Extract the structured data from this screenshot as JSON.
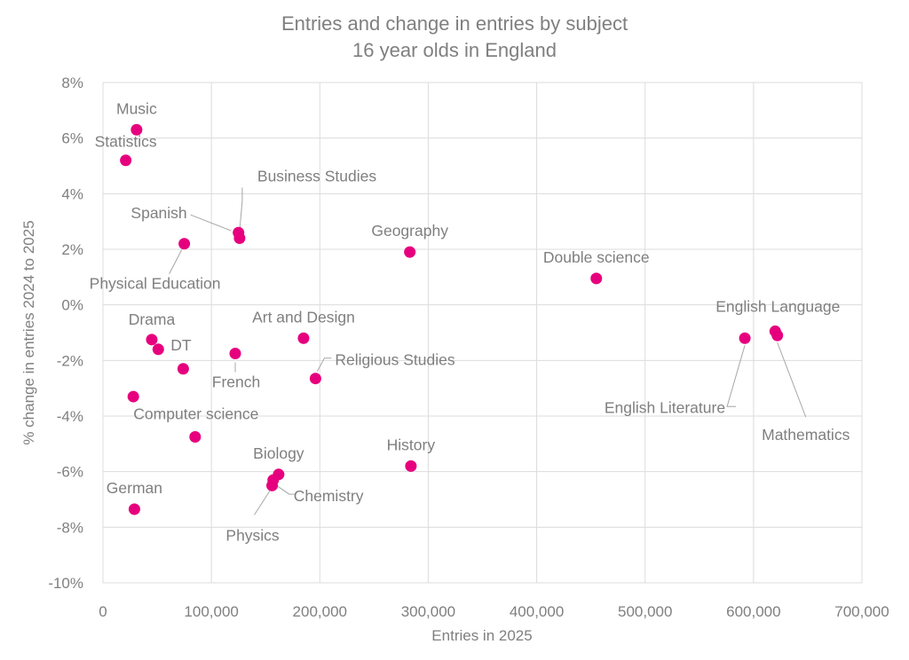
{
  "chart_data": {
    "type": "scatter",
    "title": "Entries and change in entries by subject",
    "subtitle": "16 year olds in England",
    "xlabel": "Entries in 2025",
    "ylabel": "% change in entries 2024 to 2025",
    "xlim": [
      0,
      700000
    ],
    "ylim": [
      -10,
      8
    ],
    "x_ticks": [
      0,
      100000,
      200000,
      300000,
      400000,
      500000,
      600000,
      700000
    ],
    "x_tick_labels": [
      "0",
      "100,000",
      "200,000",
      "300,000",
      "400,000",
      "500,000",
      "600,000",
      "700,000"
    ],
    "y_ticks": [
      -10,
      -8,
      -6,
      -4,
      -2,
      0,
      2,
      4,
      6,
      8
    ],
    "y_tick_labels": [
      "-10%",
      "-8%",
      "-6%",
      "-4%",
      "-2%",
      "0%",
      "2%",
      "4%",
      "6%",
      "8%"
    ],
    "grid": true,
    "marker_color": "#e6007e",
    "points": [
      {
        "label": "Music",
        "x": 31000,
        "y": 6.3
      },
      {
        "label": "Statistics",
        "x": 21000,
        "y": 5.2
      },
      {
        "label": "Business Studies",
        "x": 126000,
        "y": 2.4
      },
      {
        "label": "Spanish",
        "x": 125000,
        "y": 2.6
      },
      {
        "label": "Physical Education",
        "x": 75000,
        "y": 2.2
      },
      {
        "label": "Geography",
        "x": 283000,
        "y": 1.9
      },
      {
        "label": "Double science",
        "x": 455000,
        "y": 0.95
      },
      {
        "label": "Drama",
        "x": 45000,
        "y": -1.25
      },
      {
        "label": "DT",
        "x": 51000,
        "y": -1.6
      },
      {
        "label": "",
        "x": 74000,
        "y": -2.3
      },
      {
        "label": "French",
        "x": 122000,
        "y": -1.75
      },
      {
        "label": "Art and Design",
        "x": 185000,
        "y": -1.2
      },
      {
        "label": "Religious Studies",
        "x": 196000,
        "y": -2.65
      },
      {
        "label": "English Literature",
        "x": 592000,
        "y": -1.2
      },
      {
        "label": "English Language",
        "x": 620000,
        "y": -0.95
      },
      {
        "label": "Mathematics",
        "x": 622000,
        "y": -1.1
      },
      {
        "label": "",
        "x": 28000,
        "y": -3.3
      },
      {
        "label": "Computer science",
        "x": 85000,
        "y": -4.75
      },
      {
        "label": "Biology",
        "x": 162000,
        "y": -6.1
      },
      {
        "label": "Chemistry",
        "x": 157000,
        "y": -6.3
      },
      {
        "label": "Physics",
        "x": 156000,
        "y": -6.5
      },
      {
        "label": "History",
        "x": 284000,
        "y": -5.8
      },
      {
        "label": "German",
        "x": 29000,
        "y": -7.35
      }
    ]
  }
}
